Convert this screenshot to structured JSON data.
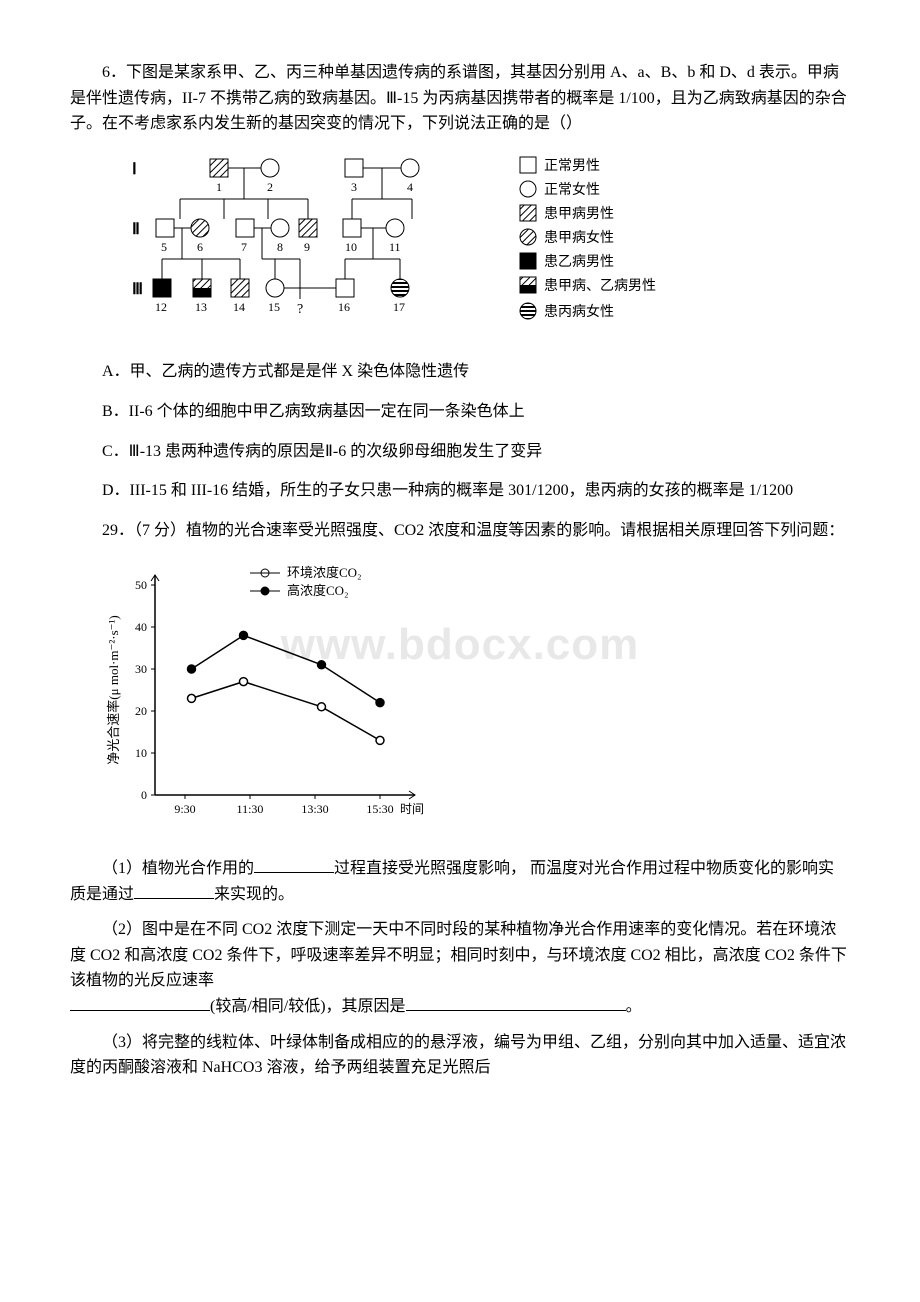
{
  "q6": {
    "stem": "6．下图是某家系甲、乙、丙三种单基因遗传病的系谱图，其基因分别用 A、a、B、b 和 D、d 表示。甲病是伴性遗传病，II-7 不携带乙病的致病基因。Ⅲ-15 为丙病基因携带者的概率是 1/100，且为乙病致病基因的杂合子。在不考虑家系内发生新的基因突变的情况下，下列说法正确的是（）",
    "legend": {
      "normal_male": "正常男性",
      "normal_female": "正常女性",
      "a_male": "患甲病男性",
      "a_female": "患甲病女性",
      "b_male": "患乙病男性",
      "ab_male": "患甲病、乙病男性",
      "c_female": "患丙病女性"
    },
    "gen_labels": {
      "g1": "Ⅰ",
      "g2": "Ⅱ",
      "g3": "Ⅲ"
    },
    "numbers": [
      "1",
      "2",
      "3",
      "4",
      "5",
      "6",
      "7",
      "8",
      "9",
      "10",
      "11",
      "12",
      "13",
      "14",
      "15",
      "16",
      "17"
    ],
    "qmark": "?",
    "options": {
      "A": "A．甲、乙病的遗传方式都是是伴 X 染色体隐性遗传",
      "B": "B．II-6 个体的细胞中甲乙病致病基因一定在同一条染色体上",
      "C": "C．Ⅲ-13 患两种遗传病的原因是Ⅱ-6 的次级卵母细胞发生了变异",
      "D": "D．III-15 和 III-16 结婚，所生的子女只患一种病的概率是 301/1200，患丙病的女孩的概率是 1/1200"
    }
  },
  "q29": {
    "stem": "29．（7 分）植物的光合速率受光照强度、CO2 浓度和温度等因素的影响。请根据相关原理回答下列问题：",
    "chart": {
      "type": "line",
      "x_ticks": [
        "9:30",
        "11:30",
        "13:30",
        "15:30"
      ],
      "x_label_suffix": "时间",
      "y_ticks": [
        0,
        10,
        20,
        30,
        40,
        50
      ],
      "y_label": "净光合速率(μ mol·m⁻²·s⁻¹)",
      "series": [
        {
          "name": "环境浓度CO₂",
          "marker": "open",
          "values": [
            [
              0.1,
              23
            ],
            [
              0.9,
              27
            ],
            [
              2.1,
              21
            ],
            [
              3.0,
              13
            ]
          ]
        },
        {
          "name": "高浓度CO₂",
          "marker": "solid",
          "values": [
            [
              0.1,
              30
            ],
            [
              0.9,
              38
            ],
            [
              2.1,
              31
            ],
            [
              3.0,
              22
            ]
          ]
        }
      ],
      "line_color": "#000000",
      "bg": "#ffffff",
      "ylim": [
        0,
        50
      ],
      "axis_fontsize": 12,
      "label_fontsize": 13
    },
    "p1_a": "（1）植物光合作用的",
    "p1_b": "过程直接受光照强度影响， 而温度对光合作用过程中物质变化的影响实质是通过",
    "p1_c": "来实现的。",
    "p2_a": "（2）图中是在不同 CO2 浓度下测定一天中不同时段的某种植物净光合作用速率的变化情况。若在环境浓度 CO2 和高浓度 CO2 条件下，呼吸速率差异不明显；相同时刻中，与环境浓度 CO2 相比，高浓度 CO2 条件下该植物的光反应速率",
    "p2_b": "(较高/相同/较低)，其原因是",
    "p2_c": "。",
    "p3": "（3）将完整的线粒体、叶绿体制备成相应的的悬浮液，编号为甲组、乙组，分别向其中加入适量、适宜浓度的丙酮酸溶液和 NaHCO3 溶液，给予两组装置充足光照后"
  },
  "watermark": "www.bdocx.com"
}
